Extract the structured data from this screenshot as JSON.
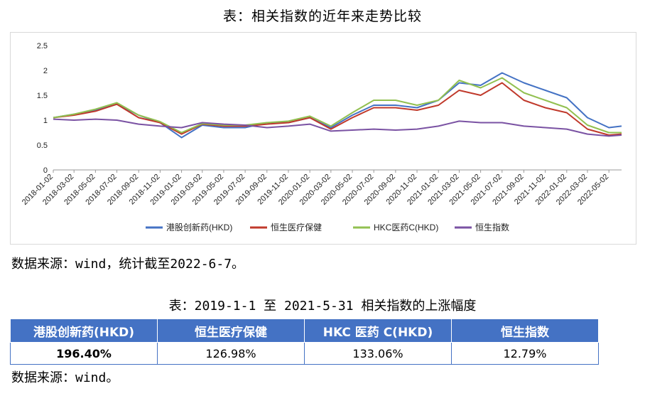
{
  "title_top": "表：相关指数的近年来走势比较",
  "source_top": "数据来源：wind，统计截至2022-6-7。",
  "title_table": "表：2019-1-1 至 2021-5-31 相关指数的上涨幅度",
  "source_bottom": "数据来源：wind。",
  "table": {
    "headers": [
      "港股创新药(HKD)",
      "恒生医疗保健",
      "HKC 医药 C(HKD)",
      "恒生指数"
    ],
    "values": [
      "196.40%",
      "126.98%",
      "133.06%",
      "12.79%"
    ]
  },
  "chart_data": {
    "type": "line",
    "ylim": [
      0,
      2.5
    ],
    "yticks": [
      "0",
      "0.5",
      "1",
      "1.5",
      "2",
      "2.5"
    ],
    "x": [
      "2018-01-02",
      "2018-03-02",
      "2018-05-02",
      "2018-07-02",
      "2018-09-02",
      "2018-11-02",
      "2019-01-02",
      "2019-03-02",
      "2019-05-02",
      "2019-07-02",
      "2019-09-02",
      "2019-11-02",
      "2020-01-02",
      "2020-03-02",
      "2020-05-02",
      "2020-07-02",
      "2020-09-02",
      "2020-11-02",
      "2021-01-02",
      "2021-03-02",
      "2021-05-02",
      "2021-07-02",
      "2021-09-02",
      "2021-11-02",
      "2022-01-02",
      "2022-03-02",
      "2022-05-02",
      "2022-06-07"
    ],
    "xtick_labels": [
      "2018-01-02",
      "2018-03-02",
      "2018-05-02",
      "2018-07-02",
      "2018-09-02",
      "2018-11-02",
      "2019-01-02",
      "2019-03-02",
      "2019-05-02",
      "2019-07-02",
      "2019-09-02",
      "2019-11-02",
      "2020-01-02",
      "2020-03-02",
      "2020-05-02",
      "2020-07-02",
      "2020-09-02",
      "2020-11-02",
      "2021-01-02",
      "2021-03-02",
      "2021-05-02",
      "2021-07-02",
      "2021-09-02",
      "2021-11-02",
      "2022-01-02",
      "2022-03-02",
      "2022-05-02"
    ],
    "legend_position": "bottom",
    "grid": false,
    "series": [
      {
        "name": "港股创新药(HKD)",
        "color": "#4472c4",
        "values": [
          1.05,
          1.12,
          1.2,
          1.32,
          1.1,
          0.95,
          0.65,
          0.9,
          0.85,
          0.85,
          0.95,
          0.95,
          1.05,
          0.85,
          1.1,
          1.3,
          1.3,
          1.25,
          1.4,
          1.75,
          1.7,
          1.95,
          1.75,
          1.6,
          1.45,
          1.05,
          0.85,
          0.88
        ]
      },
      {
        "name": "恒生医疗保健",
        "color": "#c0392b",
        "values": [
          1.05,
          1.1,
          1.18,
          1.32,
          1.05,
          0.95,
          0.72,
          0.92,
          0.88,
          0.88,
          0.92,
          0.95,
          1.05,
          0.82,
          1.05,
          1.25,
          1.25,
          1.2,
          1.3,
          1.6,
          1.5,
          1.75,
          1.4,
          1.25,
          1.15,
          0.82,
          0.7,
          0.72
        ]
      },
      {
        "name": "HKC医药C(HKD)",
        "color": "#92c050",
        "values": [
          1.05,
          1.12,
          1.22,
          1.35,
          1.1,
          0.97,
          0.75,
          0.93,
          0.9,
          0.9,
          0.95,
          0.98,
          1.08,
          0.88,
          1.15,
          1.4,
          1.4,
          1.3,
          1.4,
          1.8,
          1.65,
          1.85,
          1.55,
          1.4,
          1.25,
          0.9,
          0.75,
          0.75
        ]
      },
      {
        "name": "恒生指数",
        "color": "#7a52a3",
        "values": [
          1.02,
          1.0,
          1.02,
          1.0,
          0.92,
          0.88,
          0.85,
          0.95,
          0.92,
          0.9,
          0.85,
          0.88,
          0.92,
          0.78,
          0.8,
          0.82,
          0.8,
          0.82,
          0.88,
          0.98,
          0.95,
          0.95,
          0.88,
          0.85,
          0.82,
          0.72,
          0.68,
          0.7
        ]
      }
    ]
  }
}
